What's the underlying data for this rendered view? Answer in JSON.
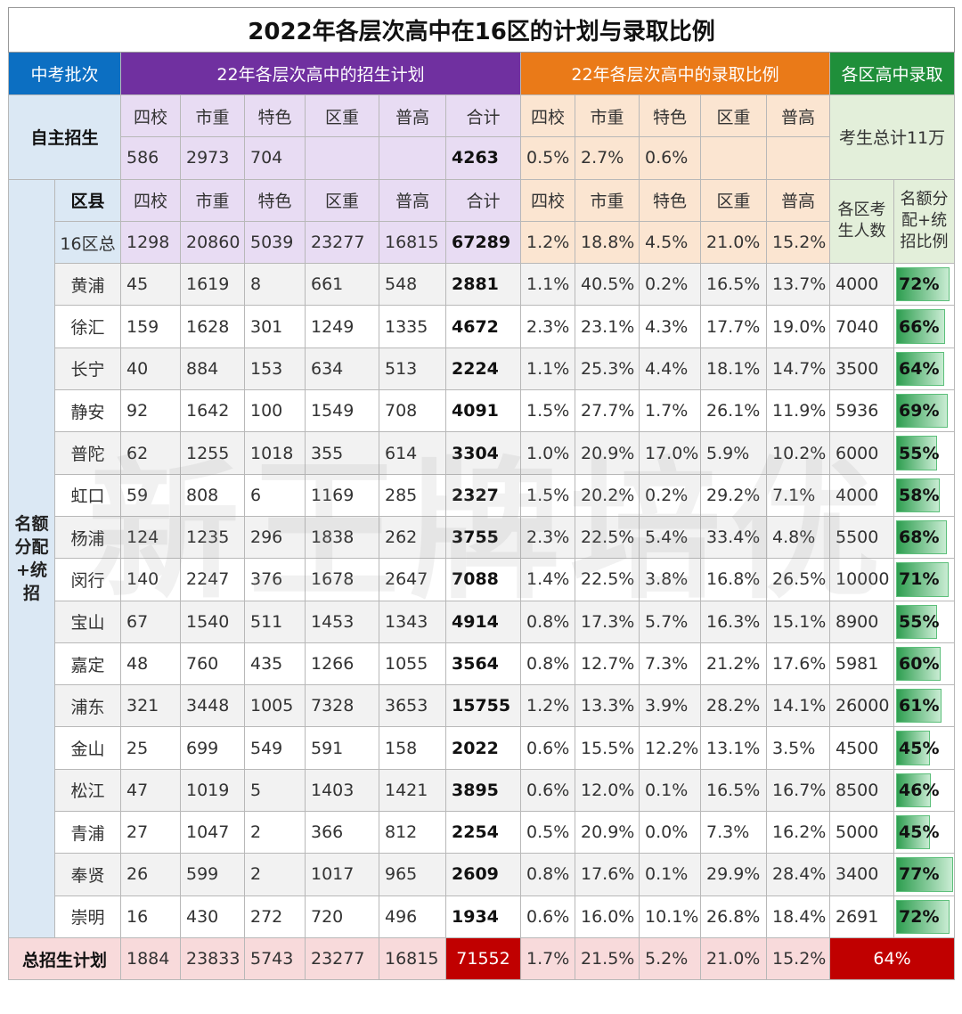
{
  "title": "2022年各层次高中在16区的计划与录取比例",
  "header": {
    "batch": "中考批次",
    "plan": "22年各层次高中的招生计划",
    "ratio": "22年各层次高中的录取比例",
    "district_admit": "各区高中录取"
  },
  "colors": {
    "batch": "#0c6fc2",
    "plan": "#7030a0",
    "ratio": "#ea7a18",
    "district": "#1f8f3a",
    "total_highlight": "#c00000"
  },
  "self_recruit": {
    "label": "自主招生",
    "cols": [
      "四校",
      "市重",
      "特色",
      "区重",
      "普高",
      "合计"
    ],
    "ratio_cols": [
      "四校",
      "市重",
      "特色",
      "区重",
      "普高"
    ],
    "values": [
      "586",
      "2973",
      "704",
      "",
      "",
      "4263"
    ],
    "ratios": [
      "0.5%",
      "2.7%",
      "0.6%",
      "",
      ""
    ],
    "candidates_note": "考生总计11万"
  },
  "quota": {
    "side_label": "名额分配+统招",
    "district_col": "区县",
    "cols": [
      "四校",
      "市重",
      "特色",
      "区重",
      "普高",
      "合计"
    ],
    "ratio_cols": [
      "四校",
      "市重",
      "特色",
      "区重",
      "普高"
    ],
    "examinee_col": "各区考生人数",
    "ratio_col": "名额分配+统招比例",
    "total_row": {
      "name": "16区总",
      "values": [
        "1298",
        "20860",
        "5039",
        "23277",
        "16815",
        "67289"
      ],
      "ratios": [
        "1.2%",
        "18.8%",
        "4.5%",
        "21.0%",
        "15.2%"
      ]
    },
    "rows": [
      {
        "name": "黄浦",
        "values": [
          "45",
          "1619",
          "8",
          "661",
          "548",
          "2881"
        ],
        "ratios": [
          "1.1%",
          "40.5%",
          "0.2%",
          "16.5%",
          "13.7%"
        ],
        "examinees": "4000",
        "admit_ratio": "72%",
        "admit_value": 72
      },
      {
        "name": "徐汇",
        "values": [
          "159",
          "1628",
          "301",
          "1249",
          "1335",
          "4672"
        ],
        "ratios": [
          "2.3%",
          "23.1%",
          "4.3%",
          "17.7%",
          "19.0%"
        ],
        "examinees": "7040",
        "admit_ratio": "66%",
        "admit_value": 66
      },
      {
        "name": "长宁",
        "values": [
          "40",
          "884",
          "153",
          "634",
          "513",
          "2224"
        ],
        "ratios": [
          "1.1%",
          "25.3%",
          "4.4%",
          "18.1%",
          "14.7%"
        ],
        "examinees": "3500",
        "admit_ratio": "64%",
        "admit_value": 64
      },
      {
        "name": "静安",
        "values": [
          "92",
          "1642",
          "100",
          "1549",
          "708",
          "4091"
        ],
        "ratios": [
          "1.5%",
          "27.7%",
          "1.7%",
          "26.1%",
          "11.9%"
        ],
        "examinees": "5936",
        "admit_ratio": "69%",
        "admit_value": 69
      },
      {
        "name": "普陀",
        "values": [
          "62",
          "1255",
          "1018",
          "355",
          "614",
          "3304"
        ],
        "ratios": [
          "1.0%",
          "20.9%",
          "17.0%",
          "5.9%",
          "10.2%"
        ],
        "examinees": "6000",
        "admit_ratio": "55%",
        "admit_value": 55
      },
      {
        "name": "虹口",
        "values": [
          "59",
          "808",
          "6",
          "1169",
          "285",
          "2327"
        ],
        "ratios": [
          "1.5%",
          "20.2%",
          "0.2%",
          "29.2%",
          "7.1%"
        ],
        "examinees": "4000",
        "admit_ratio": "58%",
        "admit_value": 58
      },
      {
        "name": "杨浦",
        "values": [
          "124",
          "1235",
          "296",
          "1838",
          "262",
          "3755"
        ],
        "ratios": [
          "2.3%",
          "22.5%",
          "5.4%",
          "33.4%",
          "4.8%"
        ],
        "examinees": "5500",
        "admit_ratio": "68%",
        "admit_value": 68
      },
      {
        "name": "闵行",
        "values": [
          "140",
          "2247",
          "376",
          "1678",
          "2647",
          "7088"
        ],
        "ratios": [
          "1.4%",
          "22.5%",
          "3.8%",
          "16.8%",
          "26.5%"
        ],
        "examinees": "10000",
        "admit_ratio": "71%",
        "admit_value": 71
      },
      {
        "name": "宝山",
        "values": [
          "67",
          "1540",
          "511",
          "1453",
          "1343",
          "4914"
        ],
        "ratios": [
          "0.8%",
          "17.3%",
          "5.7%",
          "16.3%",
          "15.1%"
        ],
        "examinees": "8900",
        "admit_ratio": "55%",
        "admit_value": 55
      },
      {
        "name": "嘉定",
        "values": [
          "48",
          "760",
          "435",
          "1266",
          "1055",
          "3564"
        ],
        "ratios": [
          "0.8%",
          "12.7%",
          "7.3%",
          "21.2%",
          "17.6%"
        ],
        "examinees": "5981",
        "admit_ratio": "60%",
        "admit_value": 60
      },
      {
        "name": "浦东",
        "values": [
          "321",
          "3448",
          "1005",
          "7328",
          "3653",
          "15755"
        ],
        "ratios": [
          "1.2%",
          "13.3%",
          "3.9%",
          "28.2%",
          "14.1%"
        ],
        "examinees": "26000",
        "admit_ratio": "61%",
        "admit_value": 61
      },
      {
        "name": "金山",
        "values": [
          "25",
          "699",
          "549",
          "591",
          "158",
          "2022"
        ],
        "ratios": [
          "0.6%",
          "15.5%",
          "12.2%",
          "13.1%",
          "3.5%"
        ],
        "examinees": "4500",
        "admit_ratio": "45%",
        "admit_value": 45
      },
      {
        "name": "松江",
        "values": [
          "47",
          "1019",
          "5",
          "1403",
          "1421",
          "3895"
        ],
        "ratios": [
          "0.6%",
          "12.0%",
          "0.1%",
          "16.5%",
          "16.7%"
        ],
        "examinees": "8500",
        "admit_ratio": "46%",
        "admit_value": 46
      },
      {
        "name": "青浦",
        "values": [
          "27",
          "1047",
          "2",
          "366",
          "812",
          "2254"
        ],
        "ratios": [
          "0.5%",
          "20.9%",
          "0.0%",
          "7.3%",
          "16.2%"
        ],
        "examinees": "5000",
        "admit_ratio": "45%",
        "admit_value": 45
      },
      {
        "name": "奉贤",
        "values": [
          "26",
          "599",
          "2",
          "1017",
          "965",
          "2609"
        ],
        "ratios": [
          "0.8%",
          "17.6%",
          "0.1%",
          "29.9%",
          "28.4%"
        ],
        "examinees": "3400",
        "admit_ratio": "77%",
        "admit_value": 77
      },
      {
        "name": "崇明",
        "values": [
          "16",
          "430",
          "272",
          "720",
          "496",
          "1934"
        ],
        "ratios": [
          "0.6%",
          "16.0%",
          "10.1%",
          "26.8%",
          "18.4%"
        ],
        "examinees": "2691",
        "admit_ratio": "72%",
        "admit_value": 72
      }
    ]
  },
  "grand_total": {
    "label": "总招生计划",
    "values": [
      "1884",
      "23833",
      "5743",
      "23277",
      "16815",
      "71552"
    ],
    "ratios": [
      "1.7%",
      "21.5%",
      "5.2%",
      "21.0%",
      "15.2%"
    ],
    "overall_ratio": "64%"
  },
  "watermark": "新王牌培优"
}
